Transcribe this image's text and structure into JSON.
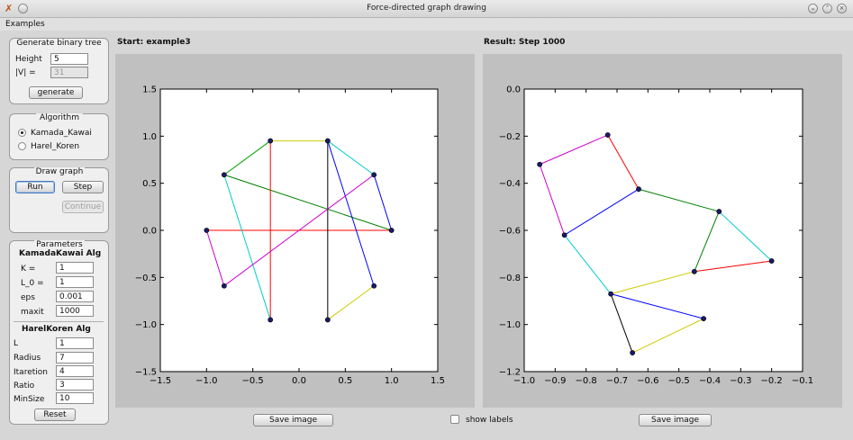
{
  "window": {
    "title": "Force-directed graph drawing"
  },
  "menu": {
    "examples": "Examples"
  },
  "gen": {
    "title": "Generate binary tree",
    "height_label": "Height",
    "height_value": "5",
    "v_label": "|V| =",
    "v_value": "31",
    "generate": "generate"
  },
  "algo": {
    "title": "Algorithm",
    "opt1": "Kamada_Kawai",
    "opt2": "Harel_Koren",
    "selected": "Kamada_Kawai"
  },
  "draw": {
    "title": "Draw graph",
    "run": "Run",
    "step": "Step",
    "continue": "Continue"
  },
  "params": {
    "title": "Parameters",
    "kk_title": "KamadaKawai Alg",
    "k_label": "K =",
    "k_value": "1",
    "l0_label": "L_0 =",
    "l0_value": "1",
    "eps_label": "eps",
    "eps_value": "0.001",
    "maxit_label": "maxit",
    "maxit_value": "1000",
    "hk_title": "HarelKoren Alg",
    "l_label": "L",
    "l_value": "1",
    "radius_label": "Radius",
    "radius_value": "7",
    "iter_label": "Itaretion",
    "iter_value": "4",
    "ratio_label": "Ratio",
    "ratio_value": "3",
    "min_label": "MinSize",
    "min_value": "10",
    "reset": "Reset"
  },
  "start": {
    "heading": "Start: example3",
    "save": "Save image"
  },
  "result": {
    "heading": "Result: Step 1000",
    "save": "Save image"
  },
  "labels": {
    "show": "show labels",
    "checked": false
  },
  "chart_data": [
    {
      "type": "scatter",
      "title": "",
      "xlabel": "",
      "ylabel": "",
      "xlim": [
        -1.5,
        1.5
      ],
      "ylim": [
        -1.5,
        1.5
      ],
      "xticks": [
        "−1.5",
        "−1.0",
        "−0.5",
        "0.0",
        "0.5",
        "1.0",
        "1.5"
      ],
      "yticks": [
        "−1.5",
        "−1.0",
        "−0.5",
        "0.0",
        "0.5",
        "1.0",
        "1.5"
      ],
      "nodes": [
        [
          -1.0,
          0.0
        ],
        [
          -0.81,
          0.59
        ],
        [
          -0.31,
          0.95
        ],
        [
          0.31,
          0.95
        ],
        [
          0.81,
          0.59
        ],
        [
          1.0,
          0.0
        ],
        [
          0.81,
          -0.59
        ],
        [
          0.31,
          -0.95
        ],
        [
          -0.31,
          -0.95
        ],
        [
          -0.81,
          -0.59
        ]
      ],
      "edges": [
        [
          0,
          5,
          "#ff0000"
        ],
        [
          1,
          2,
          "#00a000"
        ],
        [
          1,
          5,
          "#008000"
        ],
        [
          1,
          8,
          "#00cccc"
        ],
        [
          2,
          3,
          "#cccc00"
        ],
        [
          2,
          8,
          "#ff0000"
        ],
        [
          3,
          4,
          "#00cccc"
        ],
        [
          3,
          6,
          "#0000ff"
        ],
        [
          3,
          7,
          "#000000"
        ],
        [
          4,
          5,
          "#0000ff"
        ],
        [
          4,
          9,
          "#cc00cc"
        ],
        [
          0,
          9,
          "#cc00cc"
        ],
        [
          6,
          7,
          "#cccc00"
        ]
      ],
      "grid": false
    },
    {
      "type": "scatter",
      "title": "",
      "xlabel": "",
      "ylabel": "",
      "xlim": [
        -1.0,
        -0.1
      ],
      "ylim": [
        -1.2,
        0.0
      ],
      "xticks": [
        "−1.0",
        "−0.9",
        "−0.8",
        "−0.7",
        "−0.6",
        "−0.5",
        "−0.4",
        "−0.3",
        "−0.2",
        "−0.1"
      ],
      "yticks": [
        "−1.2",
        "−1.0",
        "−0.8",
        "−0.6",
        "−0.4",
        "−0.2",
        "0.0"
      ],
      "nodes": [
        [
          -0.73,
          -0.195
        ],
        [
          -0.95,
          -0.32
        ],
        [
          -0.63,
          -0.425
        ],
        [
          -0.37,
          -0.52
        ],
        [
          -0.87,
          -0.62
        ],
        [
          -0.45,
          -0.775
        ],
        [
          -0.2,
          -0.73
        ],
        [
          -0.72,
          -0.87
        ],
        [
          -0.42,
          -0.975
        ],
        [
          -0.65,
          -1.12
        ]
      ],
      "edges": [
        [
          0,
          1,
          "#cc00cc"
        ],
        [
          0,
          2,
          "#ff0000"
        ],
        [
          1,
          4,
          "#cc00cc"
        ],
        [
          2,
          4,
          "#0000ff"
        ],
        [
          2,
          3,
          "#008000"
        ],
        [
          3,
          5,
          "#008000"
        ],
        [
          3,
          6,
          "#00cccc"
        ],
        [
          5,
          6,
          "#ff0000"
        ],
        [
          4,
          7,
          "#00cccc"
        ],
        [
          7,
          5,
          "#cccc00"
        ],
        [
          7,
          8,
          "#0000ff"
        ],
        [
          7,
          9,
          "#000000"
        ],
        [
          9,
          8,
          "#cccc00"
        ]
      ],
      "grid": false
    }
  ]
}
